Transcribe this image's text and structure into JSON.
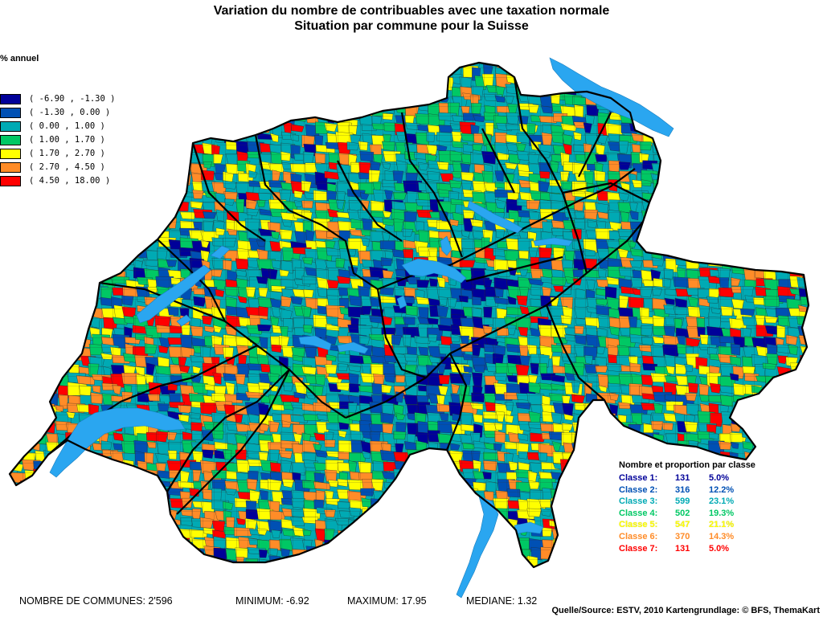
{
  "title": {
    "line1": "Variation du nombre de contribuables avec une taxation normale",
    "line2": "Situation par commune pour la Suisse"
  },
  "legend": {
    "unit": "% annuel",
    "classes": [
      {
        "label": "( -6.90 , -1.30 )",
        "color": "#000099"
      },
      {
        "label": "( -1.30 , 0.00 )",
        "color": "#0050b4"
      },
      {
        "label": "( 0.00 , 1.00 )",
        "color": "#00aab4"
      },
      {
        "label": "( 1.00 , 1.70 )",
        "color": "#00c864"
      },
      {
        "label": "( 1.70 , 2.70 )",
        "color": "#ffff00"
      },
      {
        "label": "( 2.70 , 4.50 )",
        "color": "#ff8c28"
      },
      {
        "label": "( 4.50 , 18.00 )",
        "color": "#ff0000"
      }
    ]
  },
  "stats": {
    "title": "Nombre et proportion par classe",
    "rows": [
      {
        "name": "Classe 1:",
        "count": "131",
        "pct": "5.0%",
        "color": "#000099"
      },
      {
        "name": "Classe 2:",
        "count": "316",
        "pct": "12.2%",
        "color": "#0050b4"
      },
      {
        "name": "Classe 3:",
        "count": "599",
        "pct": "23.1%",
        "color": "#00aab4"
      },
      {
        "name": "Classe 4:",
        "count": "502",
        "pct": "19.3%",
        "color": "#00c864"
      },
      {
        "name": "Classe 5:",
        "count": "547",
        "pct": "21.1%",
        "color": "#ffff00"
      },
      {
        "name": "Classe 6:",
        "count": "370",
        "pct": "14.3%",
        "color": "#ff8c28"
      },
      {
        "name": "Classe 7:",
        "count": "131",
        "pct": "5.0%",
        "color": "#ff0000"
      }
    ]
  },
  "footer": {
    "communes": "NOMBRE DE COMMUNES: 2'596",
    "minimum": "MINIMUM: -6.92",
    "maximum": "MAXIMUM: 17.95",
    "mediane": "MEDIANE: 1.32"
  },
  "source": "Quelle/Source: ESTV, 2010 Kartengrundlage: © BFS, ThemaKart",
  "colors": {
    "lake": "#2aa6f0",
    "border": "#000000"
  }
}
